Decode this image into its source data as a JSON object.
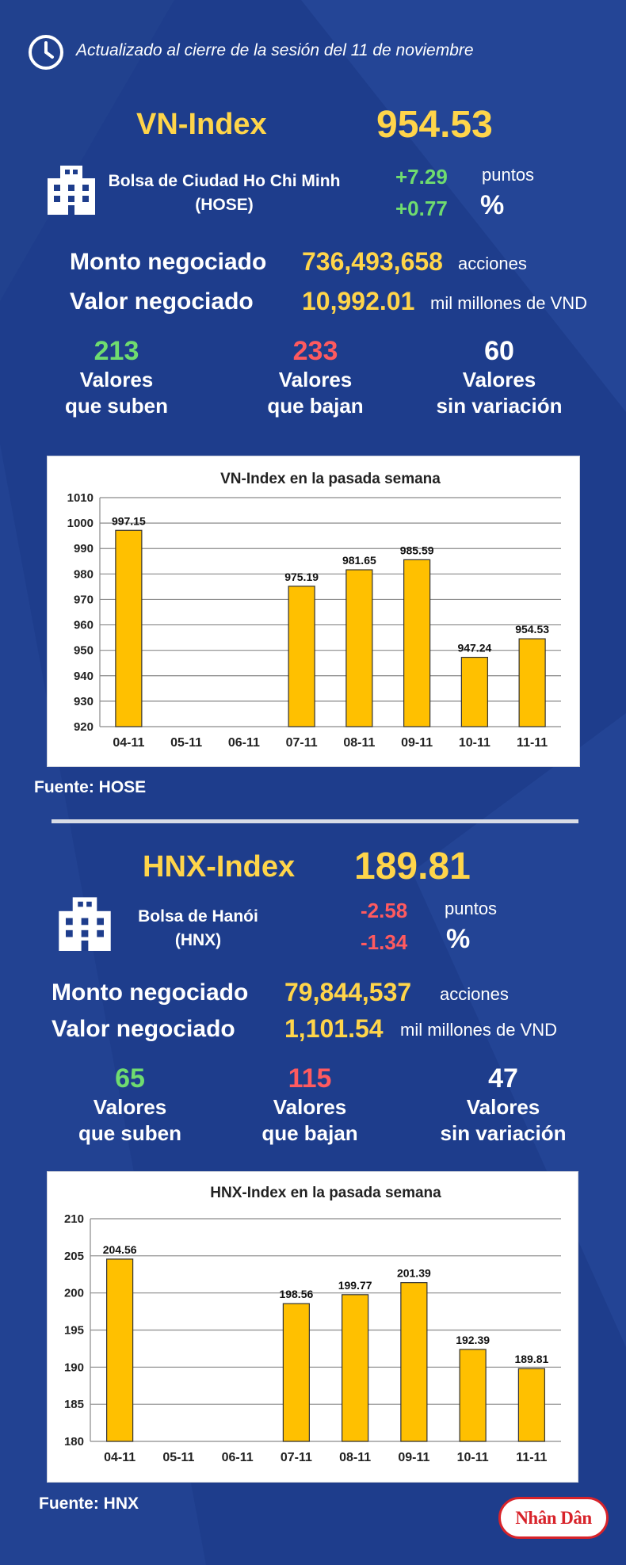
{
  "header": {
    "updated_text": "Actualizado al cierre de la sesión del 11 de noviembre"
  },
  "vn": {
    "title": "VN-Index",
    "value": "954.53",
    "exchange_line1": "Bolsa de Ciudad Ho Chi Minh",
    "exchange_line2": "(HOSE)",
    "change_points": "+7.29",
    "change_points_unit": "puntos",
    "change_pct": "+0.77",
    "change_pct_unit": "%",
    "volume_label": "Monto negociado",
    "volume_value": "736,493,658",
    "volume_unit": "acciones",
    "turnover_label": "Valor negociado",
    "turnover_value": "10,992.01",
    "turnover_unit": "mil millones de VND",
    "up_count": "213",
    "up_label_1": "Valores",
    "up_label_2": "que suben",
    "down_count": "233",
    "down_label_1": "Valores",
    "down_label_2": "que bajan",
    "flat_count": "60",
    "flat_label_1": "Valores",
    "flat_label_2": "sin variación",
    "source": "Fuente: HOSE"
  },
  "hnx": {
    "title": "HNX-Index",
    "value": "189.81",
    "exchange_line1": "Bolsa de Hanói",
    "exchange_line2": "(HNX)",
    "change_points": "-2.58",
    "change_points_unit": "puntos",
    "change_pct": "-1.34",
    "change_pct_unit": "%",
    "volume_label": "Monto negociado",
    "volume_value": "79,844,537",
    "volume_unit": "acciones",
    "turnover_label": "Valor negociado",
    "turnover_value": "1,101.54",
    "turnover_unit": "mil millones de VND",
    "up_count": "65",
    "up_label_1": "Valores",
    "up_label_2": "que suben",
    "down_count": "115",
    "down_label_1": "Valores",
    "down_label_2": "que bajan",
    "flat_count": "47",
    "flat_label_1": "Valores",
    "flat_label_2": "sin variación",
    "source": "Fuente:  HNX"
  },
  "logo_text": "Nhân Dân",
  "colors": {
    "background": "#1e3d8c",
    "highlight": "#ffd54a",
    "positive": "#6fdc6f",
    "negative": "#ff5a5f",
    "bar": "#ffc000"
  },
  "chart_data": [
    {
      "type": "bar",
      "title": "VN-Index en la pasada semana",
      "categories": [
        "04-11",
        "05-11",
        "06-11",
        "07-11",
        "08-11",
        "09-11",
        "10-11",
        "11-11"
      ],
      "values": [
        997.15,
        null,
        null,
        975.19,
        981.65,
        985.59,
        947.24,
        954.53
      ],
      "labels": [
        "997.15",
        "",
        "",
        "975.19",
        "981.65",
        "985.59",
        "947.24",
        "954.53"
      ],
      "ylim": [
        920,
        1010
      ],
      "yticks": [
        920,
        930,
        940,
        950,
        960,
        970,
        980,
        990,
        1000,
        1010
      ],
      "grid": true,
      "xlabel": "",
      "ylabel": ""
    },
    {
      "type": "bar",
      "title": "HNX-Index en la pasada semana",
      "categories": [
        "04-11",
        "05-11",
        "06-11",
        "07-11",
        "08-11",
        "09-11",
        "10-11",
        "11-11"
      ],
      "values": [
        204.56,
        null,
        null,
        198.56,
        199.77,
        201.39,
        192.39,
        189.81
      ],
      "labels": [
        "204.56",
        "",
        "",
        "198.56",
        "199.77",
        "201.39",
        "192.39",
        "189.81"
      ],
      "ylim": [
        180,
        210
      ],
      "yticks": [
        180,
        185,
        190,
        195,
        200,
        205,
        210
      ],
      "grid": true,
      "xlabel": "",
      "ylabel": ""
    }
  ]
}
